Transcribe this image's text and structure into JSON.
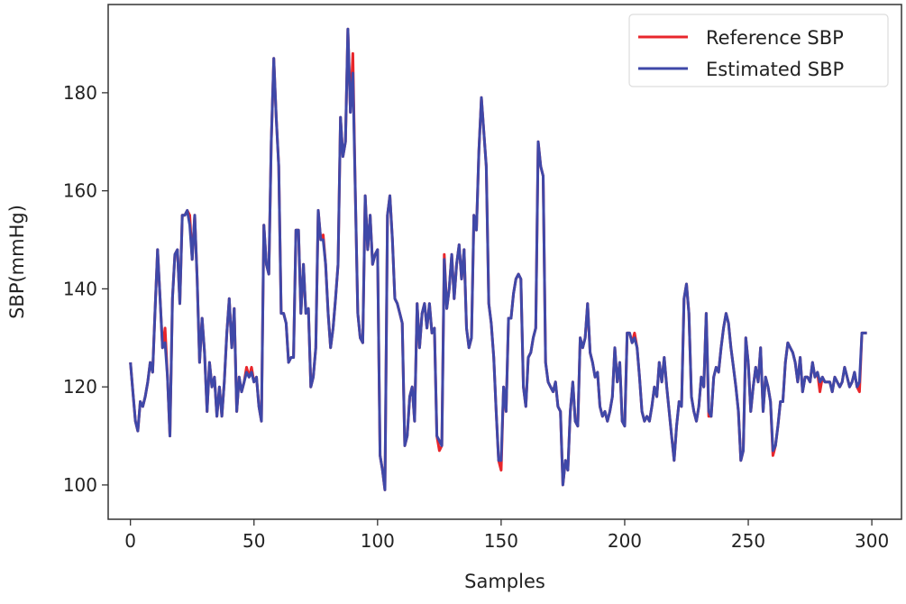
{
  "chart_data": {
    "type": "line",
    "title": "",
    "xlabel": "Samples",
    "ylabel": "SBP(mmHg)",
    "xlim": [
      -9,
      312
    ],
    "ylim": [
      93,
      198
    ],
    "xticks": [
      0,
      50,
      100,
      150,
      200,
      250,
      300
    ],
    "yticks": [
      100,
      120,
      140,
      160,
      180
    ],
    "grid": false,
    "legend_placement": "upper-right",
    "series": [
      {
        "name": "Reference SBP",
        "color": "#e8262b",
        "values": [
          125,
          119,
          113,
          111,
          117,
          116,
          118,
          121,
          125,
          123,
          136,
          148,
          138,
          128,
          132,
          122,
          110,
          138,
          147,
          148,
          137,
          155,
          155,
          156,
          155,
          146,
          155,
          142,
          125,
          134,
          127,
          115,
          125,
          120,
          122,
          114,
          120,
          114,
          121,
          131,
          138,
          128,
          136,
          115,
          122,
          119,
          121,
          124,
          122,
          124,
          121,
          122,
          116,
          113,
          153,
          145,
          143,
          170,
          187,
          175,
          165,
          135,
          135,
          133,
          125,
          126,
          126,
          152,
          152,
          135,
          145,
          135,
          136,
          120,
          122,
          128,
          156,
          150,
          151,
          145,
          135,
          128,
          132,
          138,
          145,
          175,
          167,
          170,
          193,
          176,
          188,
          160,
          135,
          130,
          129,
          159,
          148,
          155,
          145,
          147,
          148,
          106,
          103,
          99,
          155,
          159,
          150,
          138,
          137,
          135,
          133,
          108,
          110,
          118,
          120,
          113,
          137,
          128,
          135,
          137,
          132,
          137,
          131,
          132,
          110,
          107,
          108,
          147,
          136,
          140,
          147,
          138,
          145,
          149,
          142,
          148,
          132,
          128,
          130,
          155,
          152,
          168,
          179,
          172,
          165,
          137,
          133,
          126,
          115,
          105,
          103,
          120,
          115,
          134,
          134,
          139,
          142,
          143,
          142,
          120,
          116,
          126,
          127,
          130,
          132,
          170,
          165,
          163,
          125,
          121,
          120,
          119,
          121,
          116,
          115,
          100,
          105,
          103,
          115,
          121,
          113,
          112,
          130,
          128,
          130,
          137,
          127,
          125,
          122,
          123,
          116,
          114,
          115,
          113,
          115,
          118,
          128,
          121,
          125,
          113,
          112,
          131,
          131,
          129,
          131,
          128,
          122,
          115,
          113,
          114,
          113,
          116,
          120,
          118,
          125,
          121,
          126,
          120,
          115,
          110,
          105,
          112,
          117,
          116,
          138,
          141,
          135,
          118,
          115,
          113,
          116,
          122,
          120,
          135,
          114,
          114,
          122,
          124,
          123,
          128,
          132,
          135,
          133,
          128,
          124,
          120,
          115,
          105,
          107,
          130,
          125,
          115,
          120,
          124,
          121,
          128,
          115,
          122,
          120,
          117,
          106,
          108,
          112,
          117,
          117,
          125,
          129,
          128,
          127,
          125,
          121,
          126,
          119,
          122,
          122,
          121,
          125,
          122,
          123,
          119,
          122,
          121,
          121,
          121,
          119,
          122,
          121,
          120,
          121,
          124,
          122,
          120,
          121,
          123,
          120,
          119,
          131,
          131,
          131
        ]
      },
      {
        "name": "Estimated SBP",
        "color": "#3f48a8",
        "values": [
          125,
          119,
          113,
          111,
          117,
          116,
          118,
          121,
          125,
          123,
          136,
          148,
          138,
          128,
          129,
          122,
          110,
          138,
          147,
          148,
          137,
          155,
          155,
          156,
          153,
          146,
          155,
          142,
          125,
          134,
          127,
          115,
          125,
          120,
          122,
          114,
          120,
          114,
          121,
          131,
          138,
          128,
          136,
          115,
          122,
          119,
          121,
          123,
          122,
          123,
          121,
          122,
          116,
          113,
          153,
          145,
          143,
          170,
          187,
          175,
          165,
          135,
          135,
          133,
          125,
          126,
          126,
          152,
          152,
          135,
          145,
          135,
          136,
          120,
          122,
          128,
          156,
          150,
          150,
          145,
          135,
          128,
          132,
          138,
          145,
          175,
          167,
          170,
          193,
          176,
          184,
          160,
          135,
          130,
          129,
          159,
          148,
          155,
          145,
          147,
          148,
          106,
          103,
          99,
          155,
          159,
          150,
          138,
          137,
          135,
          133,
          108,
          110,
          118,
          120,
          113,
          137,
          128,
          135,
          137,
          132,
          137,
          131,
          132,
          110,
          109,
          108,
          146,
          136,
          140,
          147,
          138,
          145,
          149,
          142,
          148,
          132,
          128,
          130,
          155,
          152,
          168,
          179,
          172,
          165,
          137,
          133,
          126,
          115,
          105,
          105,
          120,
          115,
          134,
          134,
          139,
          142,
          143,
          142,
          120,
          116,
          126,
          127,
          130,
          132,
          170,
          165,
          163,
          125,
          121,
          120,
          119,
          121,
          116,
          115,
          100,
          105,
          103,
          115,
          121,
          113,
          112,
          130,
          128,
          130,
          137,
          127,
          125,
          122,
          123,
          116,
          114,
          115,
          113,
          115,
          118,
          128,
          121,
          125,
          113,
          112,
          131,
          131,
          129,
          130,
          128,
          122,
          115,
          113,
          114,
          113,
          116,
          120,
          118,
          125,
          121,
          126,
          120,
          115,
          110,
          105,
          112,
          117,
          116,
          138,
          141,
          135,
          118,
          115,
          113,
          116,
          122,
          120,
          135,
          115,
          114,
          122,
          124,
          123,
          128,
          132,
          135,
          133,
          128,
          124,
          120,
          115,
          105,
          107,
          130,
          125,
          115,
          120,
          124,
          121,
          128,
          115,
          122,
          120,
          117,
          107,
          108,
          112,
          117,
          117,
          125,
          129,
          128,
          127,
          125,
          121,
          126,
          119,
          122,
          122,
          121,
          125,
          122,
          123,
          121,
          122,
          121,
          121,
          121,
          119,
          122,
          121,
          120,
          121,
          124,
          122,
          120,
          121,
          123,
          120,
          121,
          131,
          131,
          131
        ]
      }
    ]
  }
}
